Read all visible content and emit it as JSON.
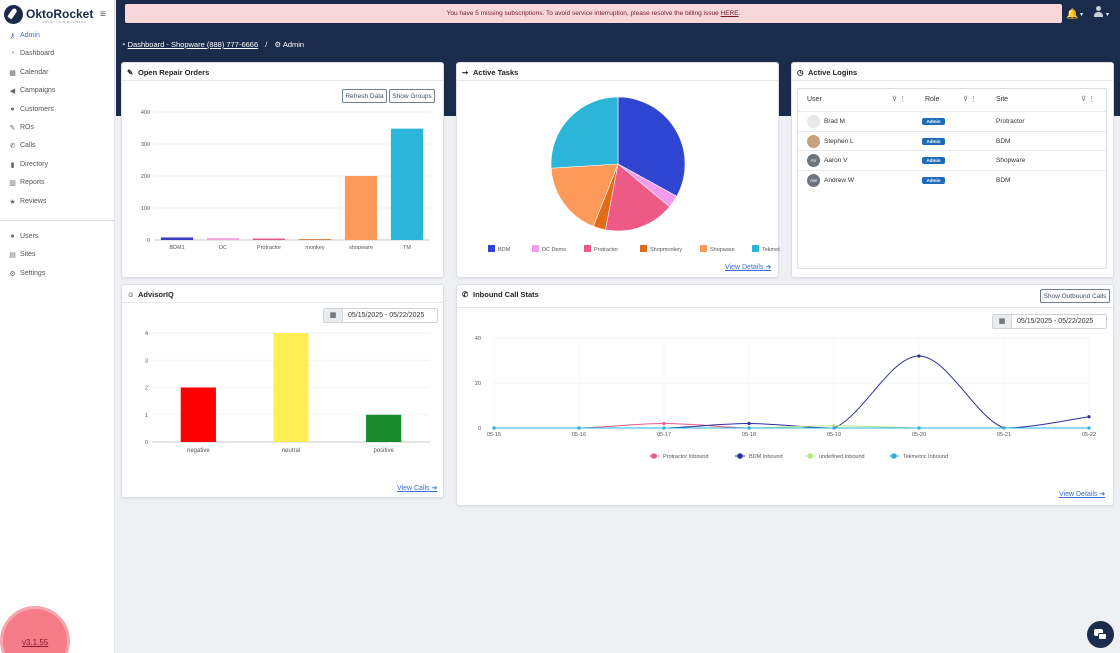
{
  "brand": {
    "name": "OktoRocket",
    "tagline": "GROW YOUR BUSINESS"
  },
  "sidebar": {
    "items": [
      {
        "label": "Admin",
        "icon": "key-icon",
        "glyph": "⚷"
      },
      {
        "label": "Dashboard",
        "icon": "dashboard-icon",
        "glyph": "◔"
      },
      {
        "label": "Calendar",
        "icon": "calendar-icon",
        "glyph": "▦"
      },
      {
        "label": "Campaigns",
        "icon": "bullhorn-icon",
        "glyph": "◀"
      },
      {
        "label": "Customers",
        "icon": "users-icon",
        "glyph": "●"
      },
      {
        "label": "ROs",
        "icon": "wrench-icon",
        "glyph": "✎"
      },
      {
        "label": "Calls",
        "icon": "phone-icon",
        "glyph": "✆"
      },
      {
        "label": "Directory",
        "icon": "book-icon",
        "glyph": "▮"
      },
      {
        "label": "Reports",
        "icon": "bar-chart-icon",
        "glyph": "▥"
      },
      {
        "label": "Reviews",
        "icon": "star-icon",
        "glyph": "★"
      }
    ],
    "bottom_items": [
      {
        "label": "Users",
        "icon": "users-icon",
        "glyph": "●"
      },
      {
        "label": "Sites",
        "icon": "building-icon",
        "glyph": "▤"
      },
      {
        "label": "Settings",
        "icon": "gear-icon",
        "glyph": "⚙"
      }
    ],
    "version": "v3.1.55"
  },
  "alert": {
    "text": "You have 5 missing subscriptions. To avoid service interruption, please resolve the billing issue ",
    "link": "HERE",
    "tail": "."
  },
  "breadcrumb": {
    "dashboard_link": "Dashboard - Shopware (888) 777-6666",
    "current": "Admin",
    "separator": "/"
  },
  "repair_orders": {
    "title": "Open Repair Orders",
    "refresh_label": "Refresh Data",
    "groups_label": "Show Groups"
  },
  "active_tasks": {
    "title": "Active Tasks",
    "view_details": "View Details"
  },
  "active_logins": {
    "title": "Active Logins",
    "columns": [
      "User",
      "Role",
      "Site"
    ],
    "rows": [
      {
        "user": "Brad M",
        "avatar": "emoji",
        "initials": "",
        "role": "Admin",
        "site": "Protractor"
      },
      {
        "user": "Stephen L",
        "avatar": "photo",
        "initials": "",
        "role": "Admin",
        "site": "BDM"
      },
      {
        "user": "Aaron V",
        "avatar": "initials",
        "initials": "AV",
        "role": "Admin",
        "site": "Shopware"
      },
      {
        "user": "Andrew W",
        "avatar": "initials",
        "initials": "AW",
        "role": "Admin",
        "site": "BDM"
      }
    ]
  },
  "advisor_iq": {
    "title": "AdvisorIQ",
    "date_range": "05/15/2025 - 05/22/2025",
    "view_calls": "View Calls"
  },
  "inbound_calls": {
    "title": "Inbound Call Stats",
    "outbound_label": "Show Outbound Calls",
    "date_range": "05/15/2025 - 05/22/2025",
    "view_details": "View Details"
  },
  "chart_data": [
    {
      "id": "repair_orders",
      "type": "bar",
      "categories": [
        "BDM1",
        "DC",
        "Protractor",
        "monkey",
        "shopware",
        "TM"
      ],
      "values": [
        8,
        6,
        2,
        0,
        200,
        348
      ],
      "colors": [
        "#3b3fbf",
        "#f2a6e6",
        "#e05a8a",
        "#d2691e",
        "#fd9a5a",
        "#2bb5d8"
      ],
      "ylim": [
        0,
        400
      ],
      "yticks": [
        0,
        100,
        200,
        300,
        400
      ]
    },
    {
      "id": "active_tasks",
      "type": "pie",
      "labels": [
        "BDM",
        "DC Demo",
        "Protractor",
        "Shopmonkey",
        "Shopware",
        "Tekmetric"
      ],
      "values": [
        33,
        3,
        17,
        3,
        18,
        26
      ],
      "colors": [
        "#2f45d1",
        "#f29bef",
        "#ec5a85",
        "#e06b1b",
        "#fd9a5a",
        "#2bb5d8"
      ]
    },
    {
      "id": "advisor_iq",
      "type": "bar",
      "categories": [
        "negative",
        "neutral",
        "positive"
      ],
      "values": [
        2,
        4,
        1
      ],
      "colors": [
        "#ff0000",
        "#ffee55",
        "#1a8a2e"
      ],
      "ylim": [
        0,
        4
      ],
      "yticks": [
        0,
        1,
        2,
        3,
        4
      ]
    },
    {
      "id": "inbound_calls",
      "type": "line",
      "x": [
        "05-15",
        "05-16",
        "05-17",
        "05-18",
        "05-19",
        "05-20",
        "05-21",
        "05-22"
      ],
      "ylim": [
        0,
        40
      ],
      "yticks": [
        0,
        20,
        40
      ],
      "series": [
        {
          "name": "Protractor Inbound",
          "color": "#ec5a85",
          "values": [
            0,
            0,
            2,
            0,
            0,
            0,
            0,
            0
          ]
        },
        {
          "name": "BDM Inbound",
          "color": "#2d2f9e",
          "values": [
            0,
            0,
            0,
            2,
            0,
            32,
            0,
            5
          ]
        },
        {
          "name": "undefined Inbound",
          "color": "#b8e58a",
          "values": [
            0,
            0,
            0,
            0,
            1,
            0,
            0,
            0
          ]
        },
        {
          "name": "Tekmetric Inbound",
          "color": "#2bb5d8",
          "values": [
            0,
            0,
            0,
            0,
            0,
            0,
            0,
            0
          ]
        }
      ]
    }
  ]
}
